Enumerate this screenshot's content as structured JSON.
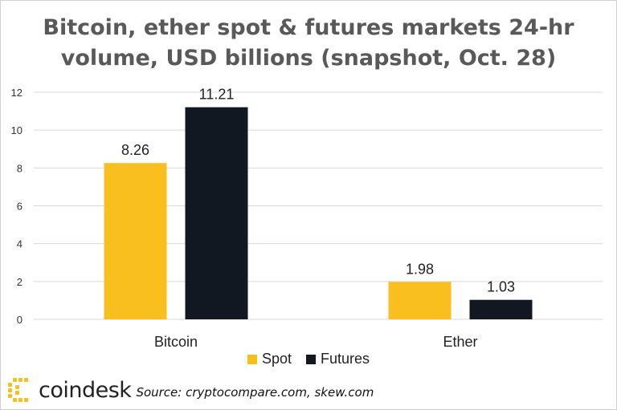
{
  "chart_data": {
    "type": "bar",
    "title": "Bitcoin, ether spot & futures markets 24-hr volume, USD billions (snapshot, Oct. 28)",
    "title_lines": [
      "Bitcoin, ether spot & futures markets 24-hr",
      "volume, USD billions (snapshot, Oct. 28)"
    ],
    "categories": [
      "Bitcoin",
      "Ether"
    ],
    "series": [
      {
        "name": "Spot",
        "color": "#F8BF1E",
        "values": [
          8.26,
          1.98
        ],
        "labels": [
          "8.26",
          "1.98"
        ]
      },
      {
        "name": "Futures",
        "color": "#111822",
        "values": [
          11.21,
          1.03
        ],
        "labels": [
          "11.21",
          "1.03"
        ]
      }
    ],
    "yticks": [
      0,
      2,
      4,
      6,
      8,
      10,
      12
    ],
    "ylim": [
      0,
      12
    ],
    "xlabel": "",
    "ylabel": "",
    "grid": true,
    "legend_position": "bottom"
  },
  "footer": {
    "brand": "coindesk",
    "logo_icon": "coindesk-logo-icon",
    "source": "Source: cryptocompare.com, skew.com"
  }
}
